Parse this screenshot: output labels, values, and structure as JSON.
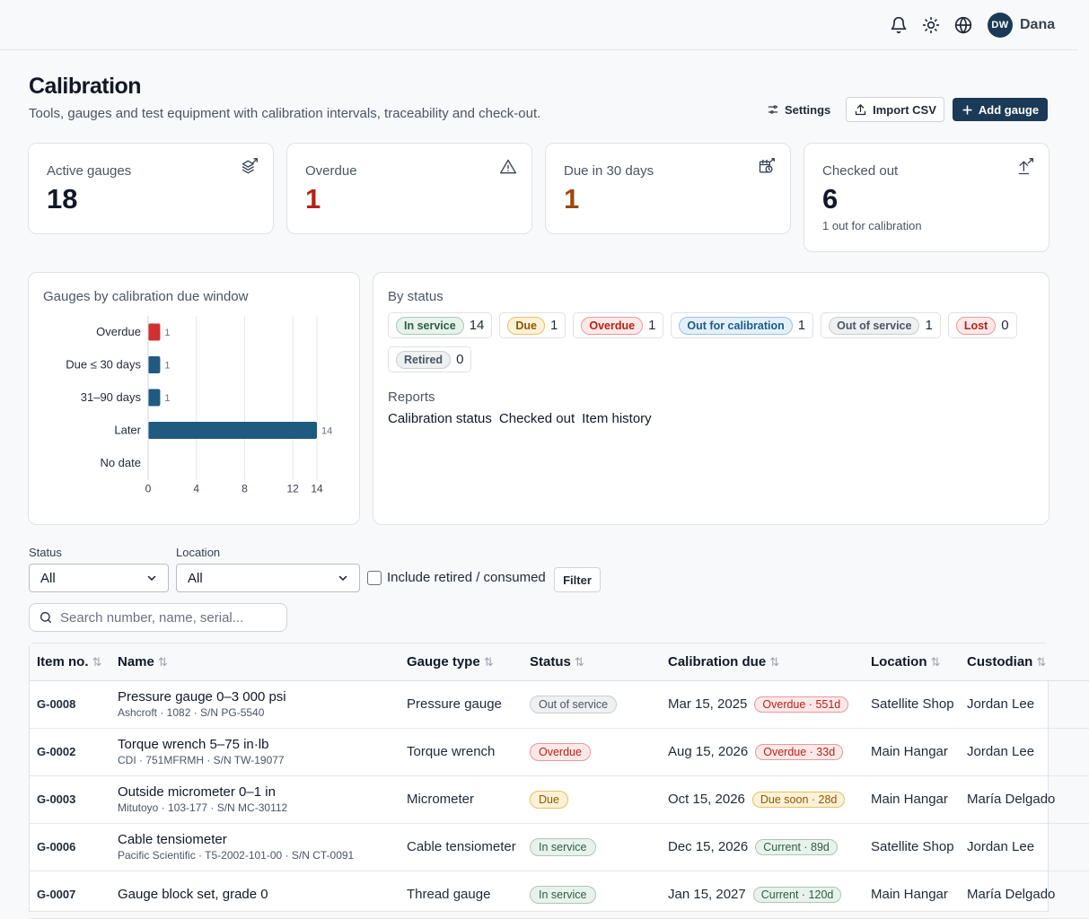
{
  "topbar": {
    "icons": [
      "bell-icon",
      "sun-icon",
      "globe-icon"
    ],
    "avatar_initials": "DW",
    "user_name": "Dana"
  },
  "header": {
    "title": "Calibration",
    "subtitle": "Tools, gauges and test equipment with calibration intervals, traceability and check-out.",
    "settings_label": "Settings",
    "import_label": "Import CSV",
    "add_label": "Add gauge"
  },
  "stats": [
    {
      "label": "Active gauges",
      "value": "18",
      "icon": "layers-icon",
      "color": "#111827",
      "note": ""
    },
    {
      "label": "Overdue",
      "value": "1",
      "icon": "warning-icon",
      "color": "#b42318",
      "note": ""
    },
    {
      "label": "Due in 30 days",
      "value": "1",
      "icon": "calendar-clock-icon",
      "color": "#9a4a12",
      "note": ""
    },
    {
      "label": "Checked out",
      "value": "6",
      "icon": "upload-icon",
      "color": "#111827",
      "note": "1 out for calibration"
    }
  ],
  "chart_data": {
    "type": "bar",
    "orientation": "horizontal",
    "title": "Gauges by calibration due window",
    "categories": [
      "Overdue",
      "Due ≤ 30 days",
      "31–90 days",
      "Later",
      "No date"
    ],
    "values": [
      1,
      1,
      1,
      14,
      0
    ],
    "colors": [
      "#d32f2f",
      "#1f5a80",
      "#1f5a80",
      "#1f5a80",
      "#1f5a80"
    ],
    "xticks": [
      "0",
      "4",
      "8",
      "12",
      "14"
    ],
    "xlim": [
      0,
      14
    ],
    "grid": true
  },
  "status_panel": {
    "title": "By status",
    "chips": [
      {
        "label": "In service",
        "count": "14",
        "bg": "#e8f2ec",
        "border": "#a9c9b5",
        "fg": "#2f5d45"
      },
      {
        "label": "Due",
        "count": "1",
        "bg": "#fdf1d6",
        "border": "#e8c06a",
        "fg": "#8a5a00"
      },
      {
        "label": "Overdue",
        "count": "1",
        "bg": "#fde8e8",
        "border": "#e89a9a",
        "fg": "#b42318"
      },
      {
        "label": "Out for calibration",
        "count": "1",
        "bg": "#e3f0fa",
        "border": "#9cc3e0",
        "fg": "#1d5a85"
      },
      {
        "label": "Out of service",
        "count": "1",
        "bg": "#eef0f1",
        "border": "#c9ced3",
        "fg": "#4b5563"
      },
      {
        "label": "Lost",
        "count": "0",
        "bg": "#fde8e8",
        "border": "#e89a9a",
        "fg": "#b42318"
      },
      {
        "label": "Retired",
        "count": "0",
        "bg": "#eef0f1",
        "border": "#c9ced3",
        "fg": "#4b5563"
      }
    ],
    "reports_title": "Reports",
    "reports": [
      "Calibration status",
      "Checked out",
      "Item history"
    ]
  },
  "filters": {
    "status_label": "Status",
    "status_value": "All",
    "location_label": "Location",
    "location_value": "All",
    "include_retired_label": "Include retired / consumed",
    "filter_button": "Filter",
    "search_placeholder": "Search number, name, serial..."
  },
  "table": {
    "columns": [
      "Item no.",
      "Name",
      "Gauge type",
      "Status",
      "Calibration due",
      "Location",
      "Custodian"
    ],
    "rows": [
      {
        "item": "G-0008",
        "name": "Pressure gauge 0–3 000 psi",
        "sub": "Ashcroft · 1082 · S/N PG-5540",
        "type": "Pressure gauge",
        "status": "Out of service",
        "status_kind": "gray",
        "due": "Mar 15, 2025",
        "due_pill": "Overdue · 551d",
        "due_kind": "red",
        "location": "Satellite Shop",
        "custodian": "Jordan Lee"
      },
      {
        "item": "G-0002",
        "name": "Torque wrench 5–75 in·lb",
        "sub": "CDI · 751MFRMH · S/N TW-19077",
        "type": "Torque wrench",
        "status": "Overdue",
        "status_kind": "red",
        "due": "Aug 15, 2026",
        "due_pill": "Overdue · 33d",
        "due_kind": "red",
        "location": "Main Hangar",
        "custodian": "Jordan Lee"
      },
      {
        "item": "G-0003",
        "name": "Outside micrometer 0–1 in",
        "sub": "Mitutoyo · 103-177 · S/N MC-30112",
        "type": "Micrometer",
        "status": "Due",
        "status_kind": "amber",
        "due": "Oct 15, 2026",
        "due_pill": "Due soon · 28d",
        "due_kind": "amber",
        "location": "Main Hangar",
        "custodian": "María Delgado"
      },
      {
        "item": "G-0006",
        "name": "Cable tensiometer",
        "sub": "Pacific Scientific · T5-2002-101-00 · S/N CT-0091",
        "type": "Cable tensiometer",
        "status": "In service",
        "status_kind": "green",
        "due": "Dec 15, 2026",
        "due_pill": "Current · 89d",
        "due_kind": "green",
        "location": "Satellite Shop",
        "custodian": "Jordan Lee"
      },
      {
        "item": "G-0007",
        "name": "Gauge block set, grade 0",
        "sub": "",
        "type": "Thread gauge",
        "status": "In service",
        "status_kind": "green",
        "due": "Jan 15, 2027",
        "due_pill": "Current · 120d",
        "due_kind": "green",
        "location": "Main Hangar",
        "custodian": "María Delgado"
      }
    ]
  },
  "pill_styles": {
    "gray": {
      "bg": "#eef0f1",
      "border": "#c9ced3",
      "fg": "#4b5563"
    },
    "red": {
      "bg": "#fde8e8",
      "border": "#e89a9a",
      "fg": "#b42318"
    },
    "amber": {
      "bg": "#fdf1d6",
      "border": "#e8c06a",
      "fg": "#8a5a00"
    },
    "green": {
      "bg": "#e8f2ec",
      "border": "#a9c9b5",
      "fg": "#2f5d45"
    }
  }
}
